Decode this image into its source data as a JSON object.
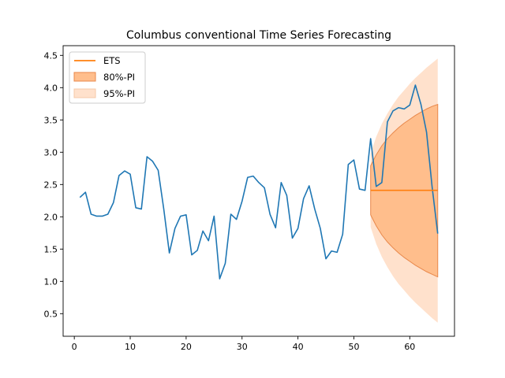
{
  "chart_data": {
    "type": "line",
    "title": "Columbus conventional Time Series Forecasting",
    "xlabel": "",
    "ylabel": "",
    "xlim": [
      -2,
      68
    ],
    "ylim": [
      0.15,
      4.65
    ],
    "x_ticks": [
      0,
      10,
      20,
      30,
      40,
      50,
      60
    ],
    "y_ticks": [
      0.5,
      1.0,
      1.5,
      2.0,
      2.5,
      3.0,
      3.5,
      4.0,
      4.5
    ],
    "x_tick_labels": [
      "0",
      "10",
      "20",
      "30",
      "40",
      "50",
      "60"
    ],
    "y_tick_labels": [
      "0.5",
      "1.0",
      "1.5",
      "2.0",
      "2.5",
      "3.0",
      "3.5",
      "4.0",
      "4.5"
    ],
    "grid": false,
    "legend_position": "top-left",
    "series": [
      {
        "role": "observed",
        "color": "#1f77b4",
        "x": [
          1,
          2,
          3,
          4,
          5,
          6,
          7,
          8,
          9,
          10,
          11,
          12,
          13,
          14,
          15,
          16,
          17,
          18,
          19,
          20,
          21,
          22,
          23,
          24,
          25,
          26,
          27,
          28,
          29,
          30,
          31,
          32,
          33,
          34,
          35,
          36,
          37,
          38,
          39,
          40,
          41,
          42,
          43,
          44,
          45,
          46,
          47,
          48,
          49,
          50,
          51,
          52,
          53,
          54,
          55,
          56,
          57,
          58,
          59,
          60,
          61,
          62,
          63,
          64,
          65
        ],
        "values": [
          2.3,
          2.38,
          2.04,
          2.01,
          2.01,
          2.04,
          2.22,
          2.64,
          2.71,
          2.66,
          2.14,
          2.12,
          2.93,
          2.86,
          2.72,
          2.12,
          1.44,
          1.82,
          2.01,
          2.03,
          1.41,
          1.48,
          1.78,
          1.63,
          2.01,
          1.04,
          1.28,
          2.04,
          1.96,
          2.24,
          2.61,
          2.63,
          2.53,
          2.45,
          2.04,
          1.83,
          2.53,
          2.33,
          1.67,
          1.82,
          2.28,
          2.48,
          2.12,
          1.82,
          1.35,
          1.47,
          1.45,
          1.73,
          2.81,
          2.88,
          2.43,
          2.41,
          3.21,
          2.47,
          2.53,
          3.47,
          3.64,
          3.69,
          3.67,
          3.73,
          4.04,
          3.74,
          3.31,
          2.46,
          1.74
        ]
      },
      {
        "name": "ETS",
        "role": "forecast",
        "color": "#ff7f0e",
        "x": [
          53,
          65
        ],
        "values": [
          2.41,
          2.41
        ]
      }
    ],
    "intervals": [
      {
        "name": "95%-PI",
        "color": "#ffe1cc",
        "x": [
          53,
          54,
          55,
          56,
          57,
          58,
          59,
          60,
          61,
          62,
          63,
          64,
          65
        ],
        "lower": [
          1.84,
          1.58,
          1.38,
          1.22,
          1.08,
          0.96,
          0.86,
          0.76,
          0.67,
          0.59,
          0.51,
          0.43,
          0.36
        ],
        "upper": [
          2.98,
          3.24,
          3.44,
          3.6,
          3.74,
          3.86,
          3.96,
          4.06,
          4.15,
          4.23,
          4.31,
          4.38,
          4.45
        ]
      },
      {
        "name": "80%-PI",
        "color": "#ffbe8c",
        "edge_color": "#e8884b",
        "x": [
          53,
          54,
          55,
          56,
          57,
          58,
          59,
          60,
          61,
          62,
          63,
          64,
          65
        ],
        "lower": [
          2.03,
          1.86,
          1.72,
          1.61,
          1.52,
          1.44,
          1.37,
          1.31,
          1.25,
          1.2,
          1.15,
          1.11,
          1.07
        ],
        "upper": [
          2.79,
          2.96,
          3.1,
          3.21,
          3.3,
          3.38,
          3.45,
          3.51,
          3.57,
          3.62,
          3.67,
          3.71,
          3.74
        ]
      }
    ],
    "legend": [
      {
        "label": "ETS",
        "kind": "line",
        "color": "#ff7f0e"
      },
      {
        "label": "80%-PI",
        "kind": "patch",
        "color": "#ffbe8c",
        "edge_color": "#e8884b"
      },
      {
        "label": "95%-PI",
        "kind": "patch",
        "color": "#ffe1cc",
        "edge_color": "#f5c9a8"
      }
    ]
  }
}
